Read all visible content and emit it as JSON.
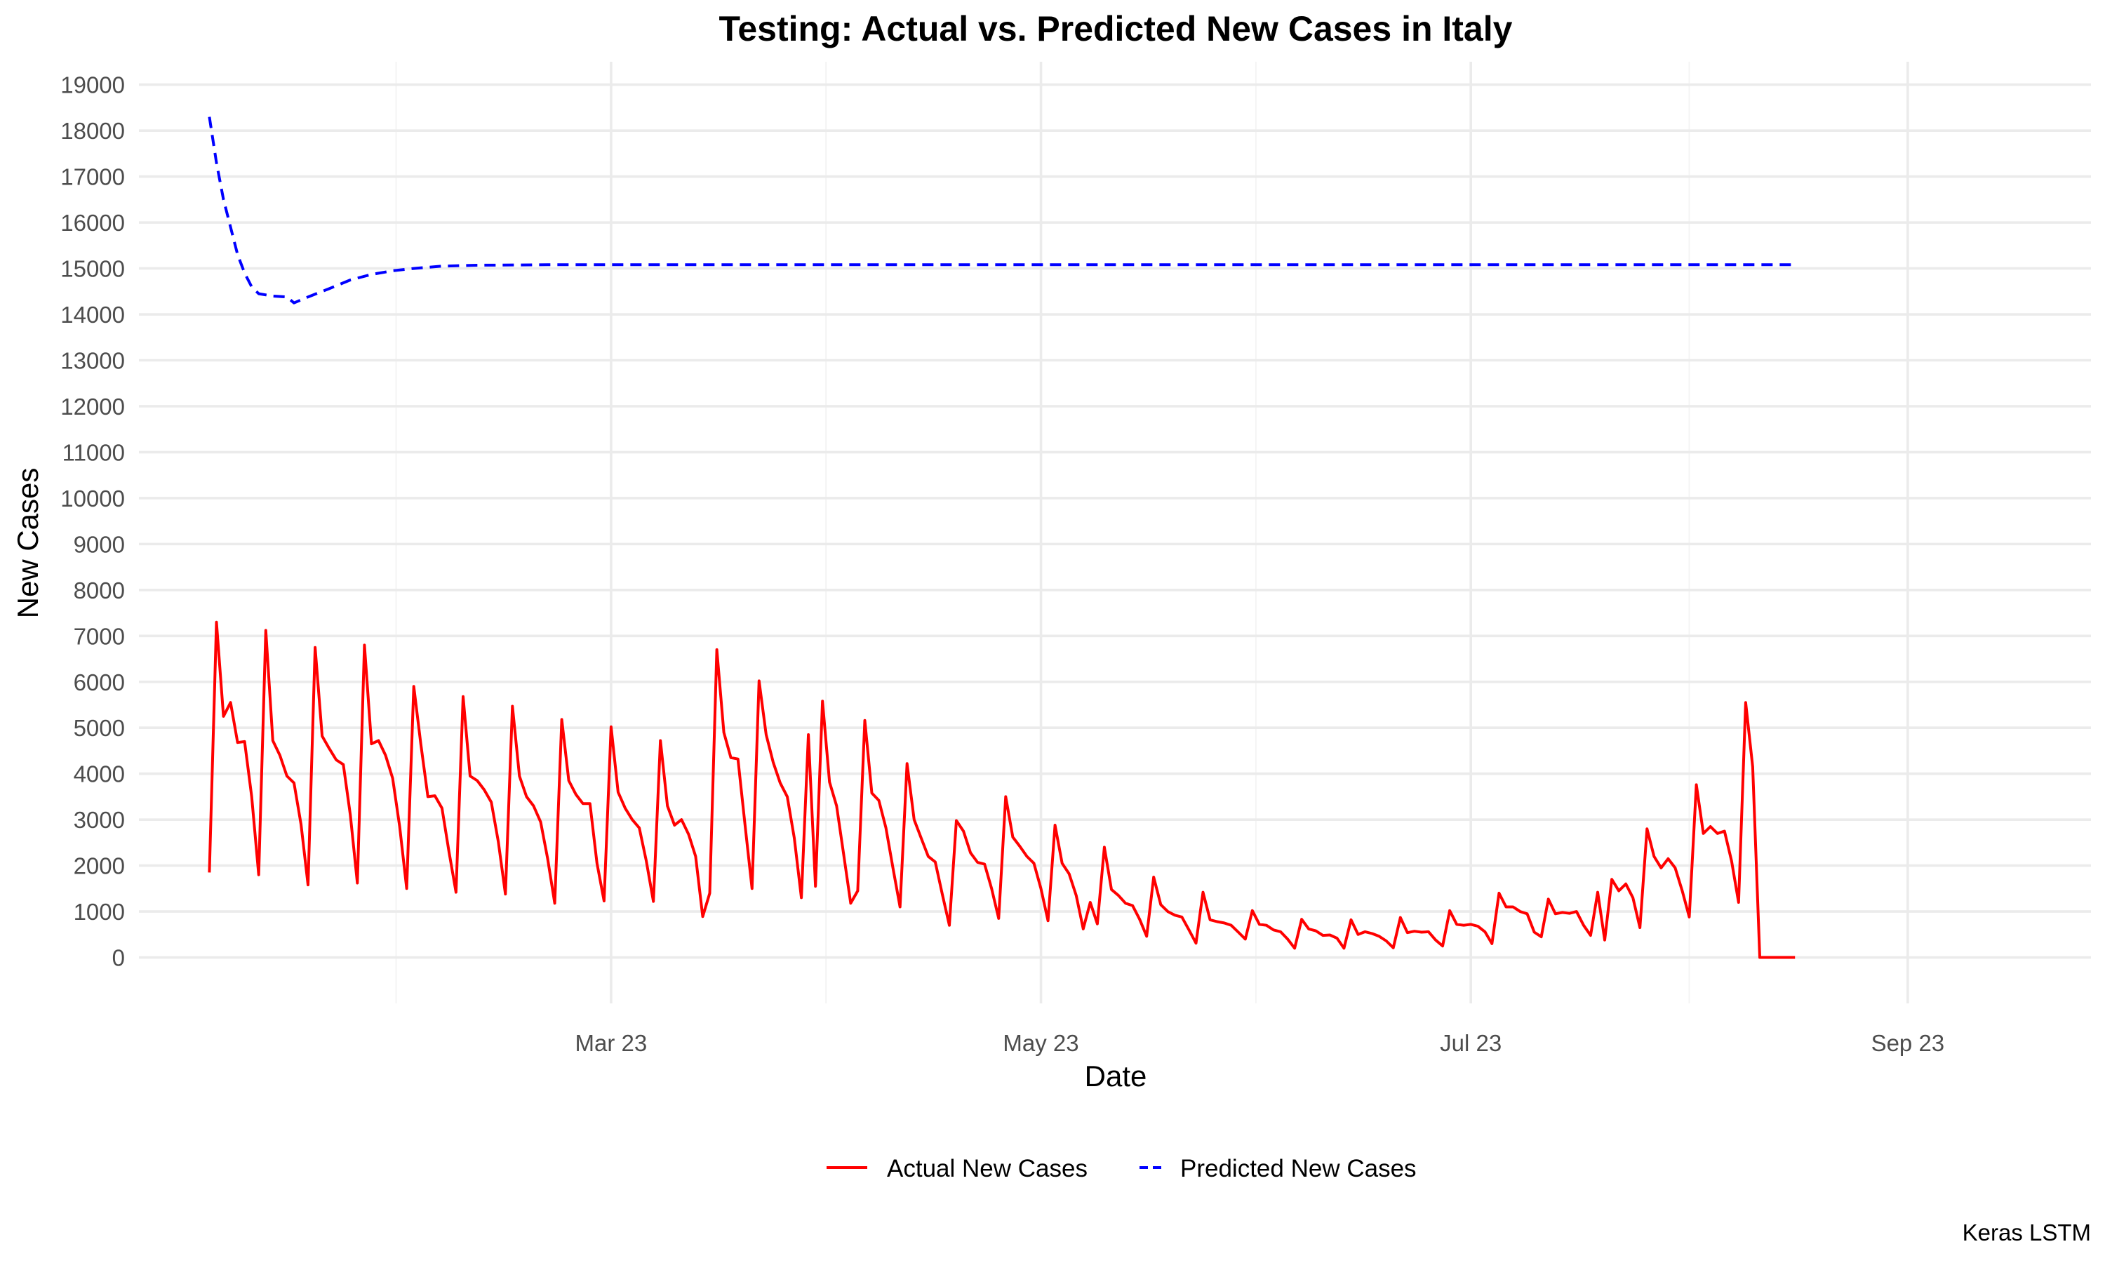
{
  "chart_data": {
    "type": "line",
    "title": "Testing: Actual vs. Predicted New Cases in Italy",
    "xlabel": "Date",
    "ylabel": "New Cases",
    "caption": "Keras LSTM",
    "x_tick_labels": [
      "Mar 23",
      "May 23",
      "Jul 23",
      "Sep 23"
    ],
    "x_tick_dates": [
      "2023-03-01",
      "2023-05-01",
      "2023-07-01",
      "2023-09-01"
    ],
    "xlim": [
      "2022-12-24",
      "2023-09-27"
    ],
    "y_ticks": [
      0,
      1000,
      2000,
      3000,
      4000,
      5000,
      6000,
      7000,
      8000,
      9000,
      10000,
      11000,
      12000,
      13000,
      14000,
      15000,
      16000,
      17000,
      18000,
      19000
    ],
    "ylim": [
      -1000,
      19500
    ],
    "grid": true,
    "legend_position": "bottom",
    "colors": {
      "actual": "#ff0000",
      "predicted": "#0000ff"
    },
    "series": [
      {
        "name": "Actual New Cases",
        "line_style": "solid",
        "color": "#ff0000",
        "points": [
          [
            "2023-01-03",
            1850
          ],
          [
            "2023-01-04",
            7300
          ],
          [
            "2023-01-05",
            5250
          ],
          [
            "2023-01-06",
            5550
          ],
          [
            "2023-01-07",
            4680
          ],
          [
            "2023-01-08",
            4700
          ],
          [
            "2023-01-09",
            3500
          ],
          [
            "2023-01-10",
            1800
          ],
          [
            "2023-01-11",
            7120
          ],
          [
            "2023-01-12",
            4720
          ],
          [
            "2023-01-13",
            4400
          ],
          [
            "2023-01-14",
            3950
          ],
          [
            "2023-01-15",
            3800
          ],
          [
            "2023-01-16",
            2900
          ],
          [
            "2023-01-17",
            1580
          ],
          [
            "2023-01-18",
            6750
          ],
          [
            "2023-01-19",
            4820
          ],
          [
            "2023-01-20",
            4550
          ],
          [
            "2023-01-21",
            4300
          ],
          [
            "2023-01-22",
            4200
          ],
          [
            "2023-01-23",
            3100
          ],
          [
            "2023-01-24",
            1620
          ],
          [
            "2023-01-25",
            6800
          ],
          [
            "2023-01-26",
            4650
          ],
          [
            "2023-01-27",
            4720
          ],
          [
            "2023-01-28",
            4400
          ],
          [
            "2023-01-29",
            3900
          ],
          [
            "2023-01-30",
            2850
          ],
          [
            "2023-01-31",
            1500
          ],
          [
            "2023-02-01",
            5900
          ],
          [
            "2023-02-02",
            4650
          ],
          [
            "2023-02-03",
            3500
          ],
          [
            "2023-02-04",
            3520
          ],
          [
            "2023-02-05",
            3250
          ],
          [
            "2023-02-06",
            2300
          ],
          [
            "2023-02-07",
            1420
          ],
          [
            "2023-02-08",
            5680
          ],
          [
            "2023-02-09",
            3950
          ],
          [
            "2023-02-10",
            3850
          ],
          [
            "2023-02-11",
            3650
          ],
          [
            "2023-02-12",
            3380
          ],
          [
            "2023-02-13",
            2520
          ],
          [
            "2023-02-14",
            1380
          ],
          [
            "2023-02-15",
            5470
          ],
          [
            "2023-02-16",
            3950
          ],
          [
            "2023-02-17",
            3500
          ],
          [
            "2023-02-18",
            3300
          ],
          [
            "2023-02-19",
            2950
          ],
          [
            "2023-02-20",
            2150
          ],
          [
            "2023-02-21",
            1180
          ],
          [
            "2023-02-22",
            5180
          ],
          [
            "2023-02-23",
            3850
          ],
          [
            "2023-02-24",
            3550
          ],
          [
            "2023-02-25",
            3350
          ],
          [
            "2023-02-26",
            3350
          ],
          [
            "2023-02-27",
            2050
          ],
          [
            "2023-02-28",
            1230
          ],
          [
            "2023-03-01",
            5020
          ],
          [
            "2023-03-02",
            3600
          ],
          [
            "2023-03-03",
            3250
          ],
          [
            "2023-03-04",
            3000
          ],
          [
            "2023-03-05",
            2820
          ],
          [
            "2023-03-06",
            2100
          ],
          [
            "2023-03-07",
            1220
          ],
          [
            "2023-03-08",
            4720
          ],
          [
            "2023-03-09",
            3300
          ],
          [
            "2023-03-10",
            2880
          ],
          [
            "2023-03-11",
            3000
          ],
          [
            "2023-03-12",
            2680
          ],
          [
            "2023-03-13",
            2200
          ],
          [
            "2023-03-14",
            890
          ],
          [
            "2023-03-15",
            1400
          ],
          [
            "2023-03-16",
            6700
          ],
          [
            "2023-03-17",
            4900
          ],
          [
            "2023-03-18",
            4350
          ],
          [
            "2023-03-19",
            4320
          ],
          [
            "2023-03-20",
            2900
          ],
          [
            "2023-03-21",
            1500
          ],
          [
            "2023-03-22",
            6020
          ],
          [
            "2023-03-23",
            4850
          ],
          [
            "2023-03-24",
            4250
          ],
          [
            "2023-03-25",
            3800
          ],
          [
            "2023-03-26",
            3500
          ],
          [
            "2023-03-27",
            2600
          ],
          [
            "2023-03-28",
            1300
          ],
          [
            "2023-03-29",
            4850
          ],
          [
            "2023-03-30",
            1550
          ],
          [
            "2023-03-31",
            5580
          ],
          [
            "2023-04-01",
            3820
          ],
          [
            "2023-04-02",
            3300
          ],
          [
            "2023-04-03",
            2250
          ],
          [
            "2023-04-04",
            1180
          ],
          [
            "2023-04-05",
            1450
          ],
          [
            "2023-04-06",
            5160
          ],
          [
            "2023-04-07",
            3580
          ],
          [
            "2023-04-08",
            3420
          ],
          [
            "2023-04-09",
            2820
          ],
          [
            "2023-04-10",
            1950
          ],
          [
            "2023-04-11",
            1100
          ],
          [
            "2023-04-12",
            4220
          ],
          [
            "2023-04-13",
            3000
          ],
          [
            "2023-04-14",
            2600
          ],
          [
            "2023-04-15",
            2200
          ],
          [
            "2023-04-16",
            2080
          ],
          [
            "2023-04-17",
            1380
          ],
          [
            "2023-04-18",
            700
          ],
          [
            "2023-04-19",
            2980
          ],
          [
            "2023-04-20",
            2750
          ],
          [
            "2023-04-21",
            2280
          ],
          [
            "2023-04-22",
            2070
          ],
          [
            "2023-04-23",
            2030
          ],
          [
            "2023-04-24",
            1500
          ],
          [
            "2023-04-25",
            850
          ],
          [
            "2023-04-26",
            3500
          ],
          [
            "2023-04-27",
            2620
          ],
          [
            "2023-04-28",
            2420
          ],
          [
            "2023-04-29",
            2200
          ],
          [
            "2023-04-30",
            2050
          ],
          [
            "2023-05-01",
            1500
          ],
          [
            "2023-05-02",
            800
          ],
          [
            "2023-05-03",
            2880
          ],
          [
            "2023-05-04",
            2050
          ],
          [
            "2023-05-05",
            1820
          ],
          [
            "2023-05-06",
            1350
          ],
          [
            "2023-05-07",
            620
          ],
          [
            "2023-05-08",
            1200
          ],
          [
            "2023-05-09",
            730
          ],
          [
            "2023-05-10",
            2400
          ],
          [
            "2023-05-11",
            1480
          ],
          [
            "2023-05-12",
            1350
          ],
          [
            "2023-05-13",
            1180
          ],
          [
            "2023-05-14",
            1130
          ],
          [
            "2023-05-15",
            830
          ],
          [
            "2023-05-16",
            460
          ],
          [
            "2023-05-17",
            1750
          ],
          [
            "2023-05-18",
            1150
          ],
          [
            "2023-05-19",
            1000
          ],
          [
            "2023-05-20",
            920
          ],
          [
            "2023-05-21",
            880
          ],
          [
            "2023-05-22",
            600
          ],
          [
            "2023-05-23",
            310
          ],
          [
            "2023-05-24",
            1420
          ],
          [
            "2023-05-25",
            820
          ],
          [
            "2023-05-26",
            780
          ],
          [
            "2023-05-27",
            750
          ],
          [
            "2023-05-28",
            700
          ],
          [
            "2023-05-29",
            550
          ],
          [
            "2023-05-30",
            400
          ],
          [
            "2023-05-31",
            1020
          ],
          [
            "2023-06-01",
            720
          ],
          [
            "2023-06-02",
            700
          ],
          [
            "2023-06-03",
            600
          ],
          [
            "2023-06-04",
            560
          ],
          [
            "2023-06-05",
            400
          ],
          [
            "2023-06-06",
            200
          ],
          [
            "2023-06-07",
            830
          ],
          [
            "2023-06-08",
            620
          ],
          [
            "2023-06-09",
            580
          ],
          [
            "2023-06-10",
            480
          ],
          [
            "2023-06-11",
            490
          ],
          [
            "2023-06-12",
            420
          ],
          [
            "2023-06-13",
            200
          ],
          [
            "2023-06-14",
            820
          ],
          [
            "2023-06-15",
            500
          ],
          [
            "2023-06-16",
            560
          ],
          [
            "2023-06-17",
            520
          ],
          [
            "2023-06-18",
            460
          ],
          [
            "2023-06-19",
            360
          ],
          [
            "2023-06-20",
            210
          ],
          [
            "2023-06-21",
            870
          ],
          [
            "2023-06-22",
            540
          ],
          [
            "2023-06-23",
            570
          ],
          [
            "2023-06-24",
            550
          ],
          [
            "2023-06-25",
            560
          ],
          [
            "2023-06-26",
            380
          ],
          [
            "2023-06-27",
            250
          ],
          [
            "2023-06-28",
            1020
          ],
          [
            "2023-06-29",
            720
          ],
          [
            "2023-06-30",
            700
          ],
          [
            "2023-07-01",
            720
          ],
          [
            "2023-07-02",
            680
          ],
          [
            "2023-07-03",
            560
          ],
          [
            "2023-07-04",
            300
          ],
          [
            "2023-07-05",
            1400
          ],
          [
            "2023-07-06",
            1100
          ],
          [
            "2023-07-07",
            1100
          ],
          [
            "2023-07-08",
            1000
          ],
          [
            "2023-07-09",
            950
          ],
          [
            "2023-07-10",
            550
          ],
          [
            "2023-07-11",
            450
          ],
          [
            "2023-07-12",
            1270
          ],
          [
            "2023-07-13",
            950
          ],
          [
            "2023-07-14",
            980
          ],
          [
            "2023-07-15",
            960
          ],
          [
            "2023-07-16",
            1000
          ],
          [
            "2023-07-17",
            700
          ],
          [
            "2023-07-18",
            480
          ],
          [
            "2023-07-19",
            1420
          ],
          [
            "2023-07-20",
            380
          ],
          [
            "2023-07-21",
            1700
          ],
          [
            "2023-07-22",
            1450
          ],
          [
            "2023-07-23",
            1600
          ],
          [
            "2023-07-24",
            1300
          ],
          [
            "2023-07-25",
            650
          ],
          [
            "2023-07-26",
            2800
          ],
          [
            "2023-07-27",
            2200
          ],
          [
            "2023-07-28",
            1950
          ],
          [
            "2023-07-29",
            2150
          ],
          [
            "2023-07-30",
            1950
          ],
          [
            "2023-07-31",
            1450
          ],
          [
            "2023-08-01",
            880
          ],
          [
            "2023-08-02",
            3760
          ],
          [
            "2023-08-03",
            2700
          ],
          [
            "2023-08-04",
            2850
          ],
          [
            "2023-08-05",
            2700
          ],
          [
            "2023-08-06",
            2750
          ],
          [
            "2023-08-07",
            2100
          ],
          [
            "2023-08-08",
            1200
          ],
          [
            "2023-08-09",
            5550
          ],
          [
            "2023-08-10",
            4150
          ],
          [
            "2023-08-11",
            0
          ],
          [
            "2023-08-12",
            0
          ],
          [
            "2023-08-13",
            0
          ],
          [
            "2023-08-14",
            0
          ],
          [
            "2023-08-15",
            0
          ],
          [
            "2023-08-16",
            0
          ]
        ]
      },
      {
        "name": "Predicted New Cases",
        "line_style": "dashed",
        "color": "#0000ff",
        "points": [
          [
            "2023-01-03",
            18300
          ],
          [
            "2023-01-04",
            17300
          ],
          [
            "2023-01-05",
            16500
          ],
          [
            "2023-01-06",
            15900
          ],
          [
            "2023-01-07",
            15300
          ],
          [
            "2023-01-08",
            14900
          ],
          [
            "2023-01-09",
            14600
          ],
          [
            "2023-01-10",
            14450
          ],
          [
            "2023-01-12",
            14400
          ],
          [
            "2023-01-14",
            14380
          ],
          [
            "2023-01-15",
            14250
          ],
          [
            "2023-01-17",
            14380
          ],
          [
            "2023-01-20",
            14560
          ],
          [
            "2023-01-23",
            14750
          ],
          [
            "2023-01-26",
            14870
          ],
          [
            "2023-01-29",
            14950
          ],
          [
            "2023-02-01",
            15000
          ],
          [
            "2023-02-05",
            15050
          ],
          [
            "2023-02-10",
            15070
          ],
          [
            "2023-02-20",
            15080
          ],
          [
            "2023-03-15",
            15080
          ],
          [
            "2023-05-01",
            15080
          ],
          [
            "2023-07-01",
            15080
          ],
          [
            "2023-08-16",
            15080
          ]
        ]
      }
    ]
  }
}
